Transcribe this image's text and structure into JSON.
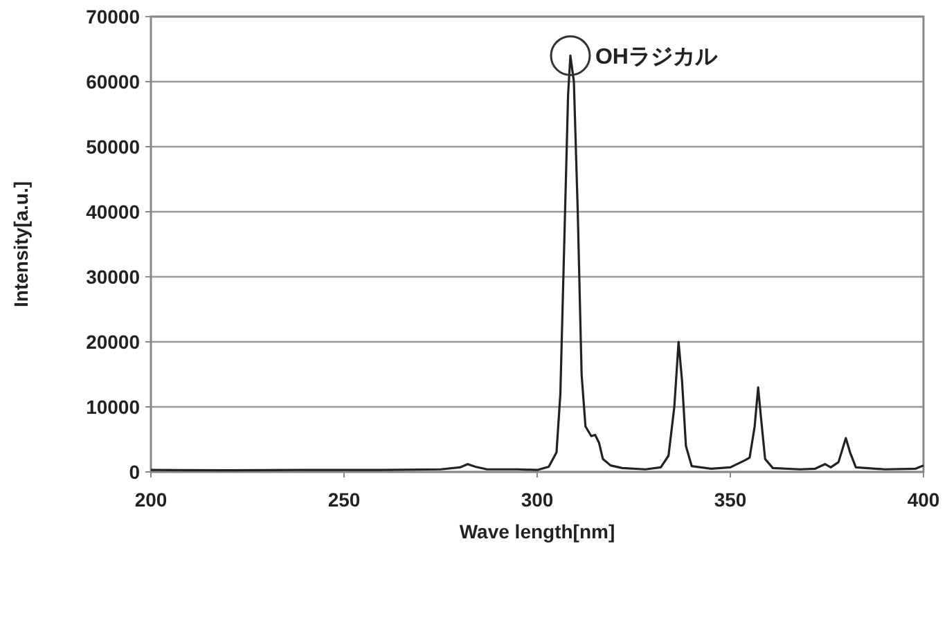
{
  "chart_data": {
    "type": "line",
    "xlabel": "Wave length[nm]",
    "ylabel": "Intensity[a.u.]",
    "xlim": [
      200,
      400
    ],
    "xticks": [
      200,
      250,
      300,
      350,
      400
    ],
    "ylim": [
      0,
      70000
    ],
    "yticks": [
      0,
      10000,
      20000,
      30000,
      40000,
      50000,
      60000,
      70000
    ],
    "grid": "y",
    "marker": "none",
    "line_style": "solid",
    "annotations": [
      {
        "text": "OHラジカル",
        "x": 308.6,
        "y": 64000
      }
    ],
    "series": [
      {
        "color": "#222222",
        "x": [
          200,
          220,
          240,
          260,
          275,
          280,
          282,
          284,
          287,
          295,
          300,
          303,
          305,
          306,
          307,
          308,
          308.6,
          309.5,
          310.5,
          311.5,
          312.5,
          314,
          315,
          316,
          317,
          319,
          322,
          328,
          332,
          334,
          335.5,
          336.6,
          337.5,
          338.5,
          340,
          345,
          350,
          353.8,
          355,
          356.3,
          357.2,
          358,
          359,
          361,
          368,
          372,
          374.5,
          376,
          378,
          379.9,
          381,
          382.5,
          390,
          398,
          400
        ],
        "values": [
          300,
          250,
          300,
          300,
          400,
          700,
          1200,
          800,
          400,
          400,
          300,
          800,
          3000,
          12000,
          35000,
          58000,
          64000,
          60000,
          40000,
          15000,
          7000,
          5500,
          5700,
          4500,
          2000,
          1000,
          600,
          400,
          700,
          2500,
          10000,
          20000,
          14000,
          4000,
          900,
          500,
          700,
          1800,
          2200,
          7000,
          13000,
          8000,
          2000,
          600,
          400,
          500,
          1200,
          700,
          1500,
          5200,
          3000,
          700,
          400,
          500,
          1000
        ]
      }
    ]
  }
}
